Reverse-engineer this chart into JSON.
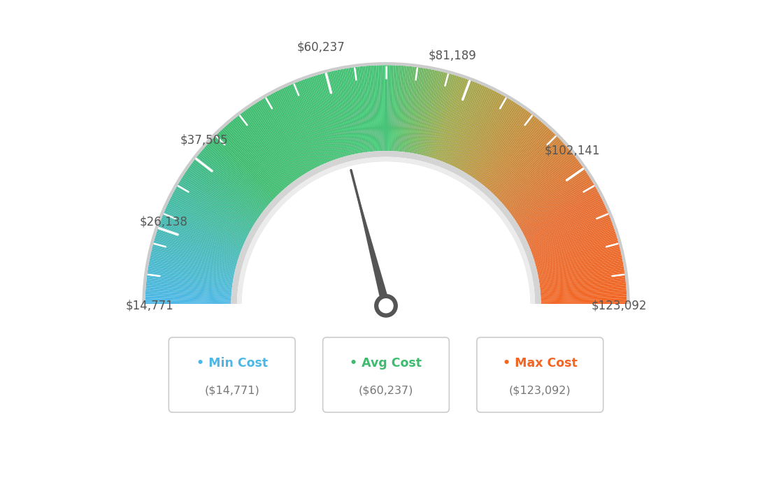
{
  "min_value": 14771,
  "max_value": 123092,
  "avg_value": 60237,
  "tick_labels": [
    "$14,771",
    "$26,138",
    "$37,505",
    "$60,237",
    "$81,189",
    "$102,141",
    "$123,092"
  ],
  "tick_values": [
    14771,
    26138,
    37505,
    60237,
    81189,
    102141,
    123092
  ],
  "legend_items": [
    {
      "label": "Min Cost",
      "value": "($14,771)",
      "color": "#4bb8e8"
    },
    {
      "label": "Avg Cost",
      "value": "($60,237)",
      "color": "#3dbb6e"
    },
    {
      "label": "Max Cost",
      "value": "($123,092)",
      "color": "#f26522"
    }
  ],
  "color_stops": [
    [
      0.0,
      [
        77,
        184,
        232
      ]
    ],
    [
      0.25,
      [
        61,
        187,
        110
      ]
    ],
    [
      0.5,
      [
        72,
        195,
        120
      ]
    ],
    [
      0.6,
      [
        160,
        170,
        80
      ]
    ],
    [
      0.72,
      [
        200,
        140,
        60
      ]
    ],
    [
      0.85,
      [
        230,
        110,
        50
      ]
    ],
    [
      1.0,
      [
        242,
        101,
        34
      ]
    ]
  ],
  "background_color": "#ffffff"
}
